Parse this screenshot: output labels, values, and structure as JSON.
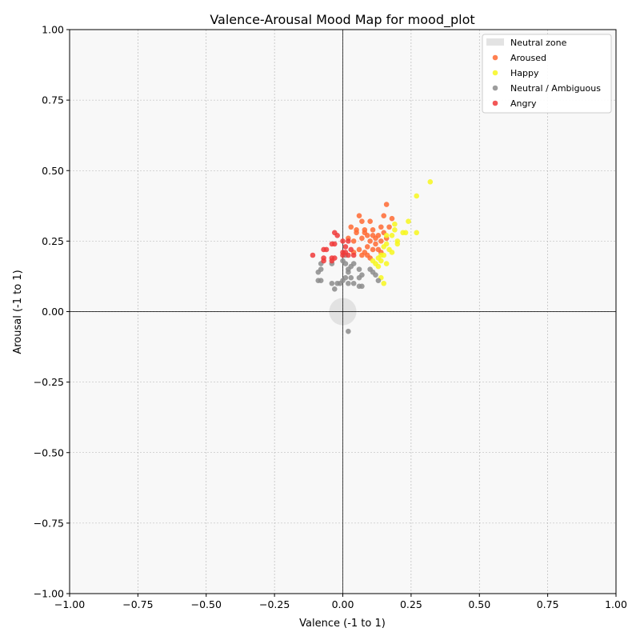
{
  "chart_data": {
    "type": "scatter",
    "title": "Valence-Arousal Mood Map for mood_plot",
    "xlabel": "Valence (-1 to 1)",
    "ylabel": "Arousal (-1 to 1)",
    "xlim": [
      -1,
      1
    ],
    "ylim": [
      -1,
      1
    ],
    "xticks": [
      "−1.00",
      "−0.75",
      "−0.50",
      "−0.25",
      "0.00",
      "0.25",
      "0.50",
      "0.75",
      "1.00"
    ],
    "yticks": [
      "−1.00",
      "−0.75",
      "−0.50",
      "−0.25",
      "0.00",
      "0.25",
      "0.50",
      "0.75",
      "1.00"
    ],
    "grid": true,
    "legend_position": "top-right",
    "neutral_zone": {
      "label": "Neutral zone",
      "center": [
        0,
        0
      ],
      "radius": 0.05,
      "color": "#c8c8c8"
    },
    "series": [
      {
        "name": "Aroused",
        "color": "#ff6a33",
        "points": [
          [
            0.16,
            0.38
          ],
          [
            0.06,
            0.34
          ],
          [
            0.07,
            0.32
          ],
          [
            0.1,
            0.32
          ],
          [
            0.15,
            0.34
          ],
          [
            0.18,
            0.33
          ],
          [
            0.03,
            0.3
          ],
          [
            0.08,
            0.28
          ],
          [
            0.11,
            0.29
          ],
          [
            0.14,
            0.3
          ],
          [
            0.17,
            0.3
          ],
          [
            0.05,
            0.28
          ],
          [
            0.09,
            0.27
          ],
          [
            0.13,
            0.27
          ],
          [
            0.16,
            0.26
          ],
          [
            0.02,
            0.26
          ],
          [
            0.04,
            0.25
          ],
          [
            0.07,
            0.26
          ],
          [
            0.1,
            0.25
          ],
          [
            0.12,
            0.26
          ],
          [
            0.15,
            0.28
          ],
          [
            0.08,
            0.21
          ],
          [
            0.11,
            0.22
          ],
          [
            0.13,
            0.22
          ],
          [
            0.06,
            0.22
          ],
          [
            0.09,
            0.23
          ],
          [
            0.04,
            0.21
          ],
          [
            0.07,
            0.2
          ],
          [
            0.1,
            0.19
          ],
          [
            0.12,
            0.24
          ],
          [
            0.14,
            0.25
          ],
          [
            0.08,
            0.29
          ],
          [
            0.11,
            0.27
          ],
          [
            0.05,
            0.29
          ],
          [
            0.09,
            0.2
          ],
          [
            0.14,
            0.21
          ]
        ]
      },
      {
        "name": "Happy",
        "color": "#f7f71e",
        "points": [
          [
            0.32,
            0.46
          ],
          [
            0.27,
            0.41
          ],
          [
            0.24,
            0.32
          ],
          [
            0.19,
            0.31
          ],
          [
            0.22,
            0.28
          ],
          [
            0.27,
            0.28
          ],
          [
            0.18,
            0.27
          ],
          [
            0.16,
            0.27
          ],
          [
            0.2,
            0.25
          ],
          [
            0.15,
            0.23
          ],
          [
            0.17,
            0.22
          ],
          [
            0.15,
            0.2
          ],
          [
            0.18,
            0.21
          ],
          [
            0.13,
            0.19
          ],
          [
            0.14,
            0.18
          ],
          [
            0.12,
            0.17
          ],
          [
            0.16,
            0.17
          ],
          [
            0.14,
            0.12
          ],
          [
            0.15,
            0.1
          ],
          [
            0.13,
            0.16
          ],
          [
            0.11,
            0.18
          ],
          [
            0.19,
            0.29
          ],
          [
            0.23,
            0.28
          ],
          [
            0.16,
            0.24
          ],
          [
            0.2,
            0.24
          ],
          [
            0.14,
            0.2
          ]
        ]
      },
      {
        "name": "Neutral / Ambiguous",
        "color": "#8c8c8c",
        "points": [
          [
            -0.08,
            0.17
          ],
          [
            -0.04,
            0.17
          ],
          [
            -0.08,
            0.15
          ],
          [
            -0.09,
            0.14
          ],
          [
            -0.09,
            0.11
          ],
          [
            -0.08,
            0.11
          ],
          [
            -0.04,
            0.1
          ],
          [
            -0.03,
            0.08
          ],
          [
            -0.02,
            0.1
          ],
          [
            -0.01,
            0.1
          ],
          [
            0.0,
            0.11
          ],
          [
            0.0,
            0.18
          ],
          [
            0.01,
            0.17
          ],
          [
            0.02,
            0.15
          ],
          [
            0.02,
            0.14
          ],
          [
            0.03,
            0.16
          ],
          [
            0.01,
            0.12
          ],
          [
            0.03,
            0.12
          ],
          [
            0.02,
            0.1
          ],
          [
            0.04,
            0.1
          ],
          [
            0.06,
            0.12
          ],
          [
            0.06,
            0.09
          ],
          [
            0.07,
            0.09
          ],
          [
            0.06,
            0.15
          ],
          [
            0.07,
            0.13
          ],
          [
            0.1,
            0.15
          ],
          [
            0.11,
            0.14
          ],
          [
            0.12,
            0.13
          ],
          [
            0.13,
            0.11
          ],
          [
            0.02,
            -0.07
          ],
          [
            0.04,
            0.17
          ],
          [
            0.01,
            0.2
          ]
        ]
      },
      {
        "name": "Angry",
        "color": "#f03a3a",
        "points": [
          [
            -0.11,
            0.2
          ],
          [
            -0.07,
            0.19
          ],
          [
            -0.07,
            0.18
          ],
          [
            -0.04,
            0.19
          ],
          [
            -0.03,
            0.19
          ],
          [
            -0.04,
            0.18
          ],
          [
            -0.07,
            0.22
          ],
          [
            -0.06,
            0.22
          ],
          [
            -0.04,
            0.24
          ],
          [
            -0.03,
            0.24
          ],
          [
            -0.03,
            0.28
          ],
          [
            -0.02,
            0.27
          ],
          [
            0.0,
            0.21
          ],
          [
            0.01,
            0.21
          ],
          [
            0.0,
            0.2
          ],
          [
            0.02,
            0.2
          ],
          [
            0.01,
            0.23
          ],
          [
            0.03,
            0.22
          ],
          [
            0.04,
            0.2
          ],
          [
            0.02,
            0.25
          ],
          [
            0.0,
            0.25
          ]
        ]
      }
    ]
  }
}
